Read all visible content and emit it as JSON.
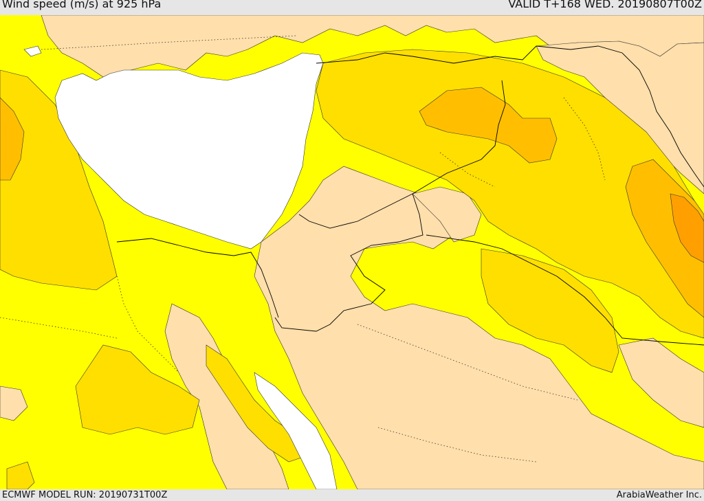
{
  "header": {
    "title": "Wind speed (m/s) at 925 hPa",
    "valid": "VALID T+168 WED. 20190807T00Z"
  },
  "footer": {
    "model_run": "ECMWF MODEL RUN: 20190731T00Z",
    "credit": "ArabiaWeather Inc."
  },
  "colors": {
    "sea": "#ffffff",
    "calm": "#ffdfab",
    "light": "#ffff00",
    "moderate": "#ffdf00",
    "fresh": "#ffbf00",
    "strong": "#ffa000",
    "contour": "#333333",
    "border": "#000000"
  }
}
